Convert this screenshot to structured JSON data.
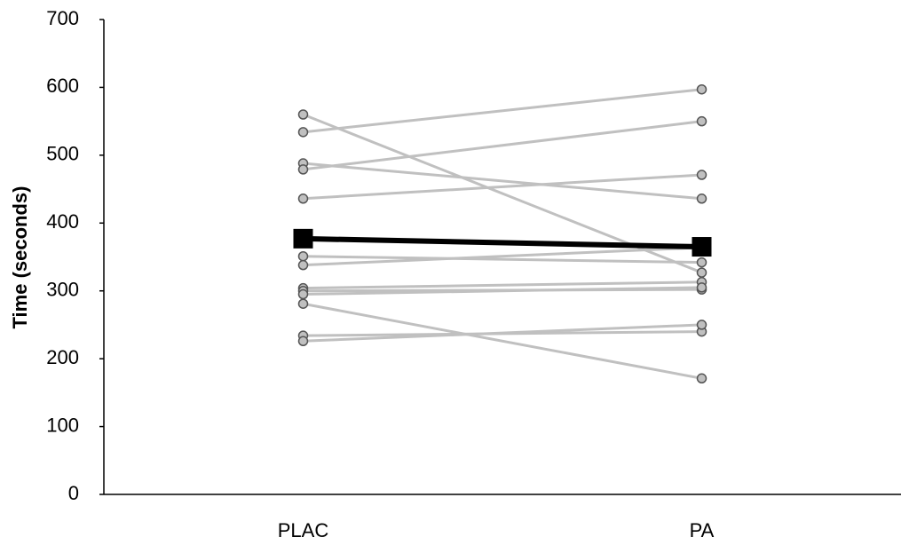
{
  "chart_data": {
    "type": "line",
    "y_label": "Time (seconds)",
    "categories": [
      "PLAC",
      "PA"
    ],
    "ylim": [
      0,
      700
    ],
    "yticks": [
      0,
      100,
      200,
      300,
      400,
      500,
      600,
      700
    ],
    "series": [
      {
        "color": "#c0c0c0",
        "marker": "circle",
        "values": [
          560,
          327
        ]
      },
      {
        "color": "#c0c0c0",
        "marker": "circle",
        "values": [
          534,
          597
        ]
      },
      {
        "color": "#c0c0c0",
        "marker": "circle",
        "values": [
          488,
          436
        ]
      },
      {
        "color": "#c0c0c0",
        "marker": "circle",
        "values": [
          479,
          550
        ]
      },
      {
        "color": "#c0c0c0",
        "marker": "circle",
        "values": [
          436,
          471
        ]
      },
      {
        "color": "#c0c0c0",
        "marker": "circle",
        "values": [
          351,
          342
        ]
      },
      {
        "color": "#c0c0c0",
        "marker": "circle",
        "values": [
          338,
          364
        ]
      },
      {
        "color": "#c0c0c0",
        "marker": "circle",
        "values": [
          304,
          313
        ]
      },
      {
        "color": "#c0c0c0",
        "marker": "circle",
        "values": [
          300,
          302
        ]
      },
      {
        "color": "#c0c0c0",
        "marker": "circle",
        "values": [
          295,
          305
        ]
      },
      {
        "color": "#c0c0c0",
        "marker": "circle",
        "values": [
          281,
          171
        ]
      },
      {
        "color": "#c0c0c0",
        "marker": "circle",
        "values": [
          234,
          240
        ]
      },
      {
        "color": "#c0c0c0",
        "marker": "circle",
        "values": [
          226,
          250
        ]
      },
      {
        "color": "#000000",
        "marker": "square",
        "values": [
          377,
          365
        ]
      }
    ]
  }
}
